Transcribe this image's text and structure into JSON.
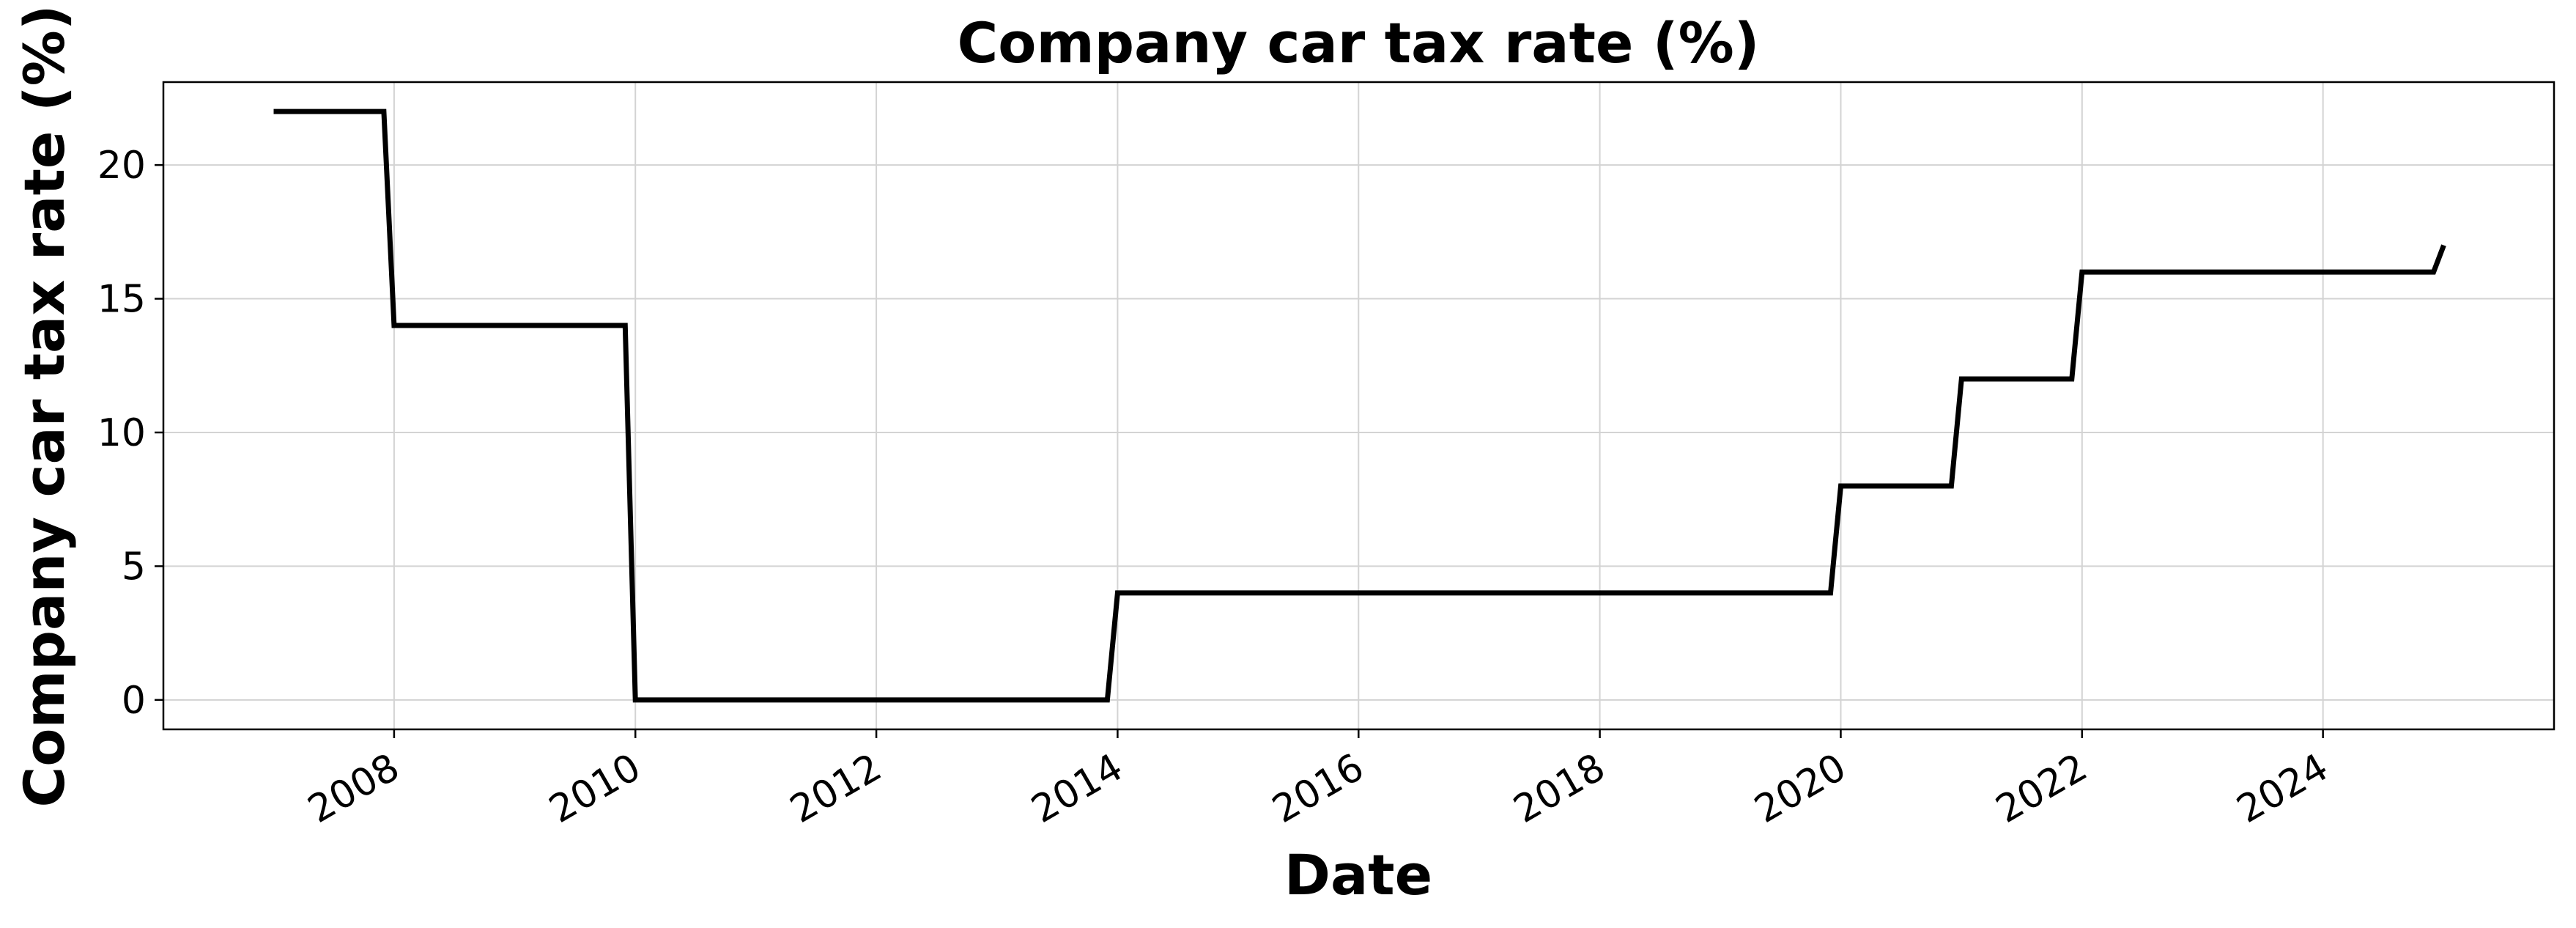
{
  "chart_data": {
    "type": "line",
    "title": "Company car tax rate (%)",
    "xlabel": "Date",
    "ylabel": "Company car tax rate (%)",
    "x_ticks": [
      "2008",
      "2010",
      "2012",
      "2014",
      "2016",
      "2018",
      "2020",
      "2022",
      "2024"
    ],
    "y_ticks": [
      0,
      5,
      10,
      15,
      20
    ],
    "xlim": [
      "2006-02-01",
      "2025-12-01"
    ],
    "ylim": [
      -1.1,
      23.1
    ],
    "grid": true,
    "series": [
      {
        "color": "#000000",
        "x": [
          "2007-01-01",
          "2007-12-01",
          "2008-01-01",
          "2009-12-01",
          "2010-01-01",
          "2013-12-01",
          "2014-01-01",
          "2019-12-01",
          "2020-01-01",
          "2020-12-01",
          "2021-01-01",
          "2021-12-01",
          "2022-01-01",
          "2024-12-01",
          "2025-01-01"
        ],
        "y": [
          22,
          22,
          14,
          14,
          0,
          0,
          4,
          4,
          8,
          8,
          12,
          12,
          16,
          16,
          17
        ]
      }
    ]
  }
}
